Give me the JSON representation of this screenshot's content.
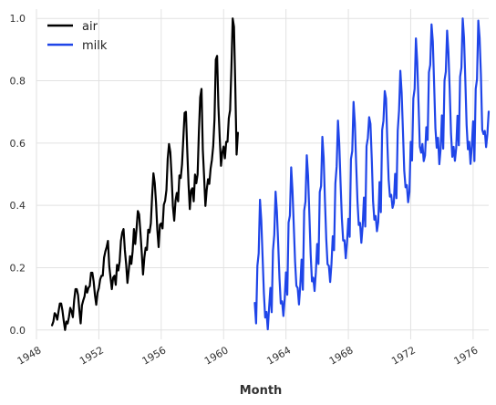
{
  "chart_data": {
    "type": "line",
    "xlabel": "Month",
    "ylabel": "",
    "title": "",
    "xlim": [
      1948.0,
      1977.0
    ],
    "ylim": [
      -0.03,
      1.03
    ],
    "x_ticks": [
      1948,
      1952,
      1956,
      1960,
      1964,
      1968,
      1972,
      1976
    ],
    "x_tick_labels": [
      "1948",
      "1952",
      "1956",
      "1960",
      "1964",
      "1968",
      "1972",
      "1976"
    ],
    "y_ticks": [
      0.0,
      0.2,
      0.4,
      0.6,
      0.8,
      1.0
    ],
    "y_tick_labels": [
      "0.0",
      "0.2",
      "0.4",
      "0.6",
      "0.8",
      "1.0"
    ],
    "grid": true,
    "legend_position": "top-left",
    "series": [
      {
        "name": "air",
        "color": "#000000",
        "start": "1949-01",
        "values": [
          0.015,
          0.027,
          0.054,
          0.048,
          0.033,
          0.06,
          0.085,
          0.085,
          0.062,
          0.029,
          0.0,
          0.027,
          0.021,
          0.042,
          0.071,
          0.06,
          0.041,
          0.095,
          0.131,
          0.131,
          0.112,
          0.064,
          0.021,
          0.079,
          0.095,
          0.108,
          0.141,
          0.12,
          0.135,
          0.141,
          0.184,
          0.184,
          0.156,
          0.112,
          0.081,
          0.12,
          0.134,
          0.162,
          0.174,
          0.174,
          0.232,
          0.252,
          0.266,
          0.286,
          0.205,
          0.168,
          0.131,
          0.168,
          0.174,
          0.145,
          0.209,
          0.191,
          0.22,
          0.286,
          0.313,
          0.324,
          0.257,
          0.212,
          0.151,
          0.191,
          0.237,
          0.212,
          0.253,
          0.324,
          0.276,
          0.324,
          0.382,
          0.371,
          0.313,
          0.249,
          0.178,
          0.232,
          0.264,
          0.257,
          0.322,
          0.313,
          0.342,
          0.43,
          0.503,
          0.472,
          0.409,
          0.322,
          0.266,
          0.338,
          0.342,
          0.326,
          0.402,
          0.415,
          0.449,
          0.55,
          0.597,
          0.571,
          0.492,
          0.396,
          0.351,
          0.415,
          0.44,
          0.413,
          0.496,
          0.488,
          0.531,
          0.614,
          0.697,
          0.7,
          0.579,
          0.469,
          0.388,
          0.448,
          0.455,
          0.413,
          0.499,
          0.471,
          0.5,
          0.638,
          0.747,
          0.774,
          0.579,
          0.492,
          0.398,
          0.45,
          0.484,
          0.469,
          0.518,
          0.546,
          0.59,
          0.677,
          0.868,
          0.88,
          0.718,
          0.618,
          0.527,
          0.569,
          0.589,
          0.551,
          0.604,
          0.604,
          0.68,
          0.706,
          0.84,
          1.0,
          0.973,
          0.781,
          0.563,
          0.633
        ]
      },
      {
        "name": "milk",
        "color": "#1f45e8",
        "start": "1962-01",
        "values": [
          0.087,
          0.021,
          0.206,
          0.246,
          0.418,
          0.352,
          0.235,
          0.118,
          0.04,
          0.058,
          0.002,
          0.071,
          0.135,
          0.057,
          0.255,
          0.306,
          0.444,
          0.381,
          0.277,
          0.166,
          0.085,
          0.092,
          0.045,
          0.1,
          0.185,
          0.113,
          0.345,
          0.367,
          0.522,
          0.448,
          0.335,
          0.22,
          0.142,
          0.135,
          0.082,
          0.142,
          0.226,
          0.129,
          0.383,
          0.412,
          0.561,
          0.495,
          0.371,
          0.242,
          0.156,
          0.168,
          0.125,
          0.186,
          0.276,
          0.212,
          0.443,
          0.462,
          0.62,
          0.552,
          0.415,
          0.292,
          0.211,
          0.206,
          0.154,
          0.212,
          0.301,
          0.256,
          0.47,
          0.525,
          0.672,
          0.598,
          0.472,
          0.359,
          0.287,
          0.288,
          0.23,
          0.283,
          0.357,
          0.299,
          0.549,
          0.574,
          0.732,
          0.664,
          0.534,
          0.414,
          0.337,
          0.344,
          0.28,
          0.334,
          0.425,
          0.332,
          0.59,
          0.616,
          0.683,
          0.662,
          0.551,
          0.414,
          0.354,
          0.366,
          0.317,
          0.347,
          0.475,
          0.378,
          0.642,
          0.671,
          0.767,
          0.743,
          0.6,
          0.483,
          0.428,
          0.434,
          0.392,
          0.408,
          0.501,
          0.423,
          0.64,
          0.704,
          0.832,
          0.762,
          0.64,
          0.512,
          0.458,
          0.465,
          0.41,
          0.443,
          0.604,
          0.544,
          0.743,
          0.774,
          0.936,
          0.86,
          0.727,
          0.588,
          0.569,
          0.597,
          0.542,
          0.56,
          0.651,
          0.61,
          0.827,
          0.851,
          0.981,
          0.926,
          0.789,
          0.647,
          0.585,
          0.617,
          0.532,
          0.581,
          0.689,
          0.582,
          0.801,
          0.829,
          0.961,
          0.892,
          0.769,
          0.63,
          0.556,
          0.588,
          0.543,
          0.584,
          0.688,
          0.593,
          0.813,
          0.842,
          1.0,
          0.938,
          0.803,
          0.658,
          0.58,
          0.604,
          0.533,
          0.59,
          0.67,
          0.542,
          0.774,
          0.805,
          0.993,
          0.938,
          0.819,
          0.643,
          0.629,
          0.639,
          0.587,
          0.63,
          0.701
        ]
      }
    ]
  }
}
